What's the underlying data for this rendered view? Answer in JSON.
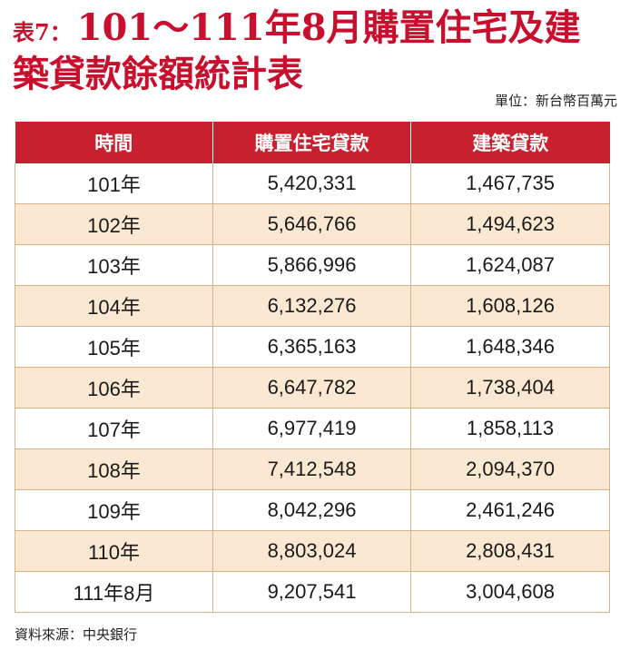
{
  "title": {
    "prefix": "表7：",
    "line1": "101～111年8月購置住宅及建",
    "line2": "築貸款餘額統計表",
    "color": "#c8102e"
  },
  "unit": "單位：新台幣百萬元",
  "table": {
    "header_color": "#c8202f",
    "stripe_color": "#fbe8d2",
    "headers": [
      "時間",
      "購置住宅貸款",
      "建築貸款"
    ],
    "rows": [
      [
        "101年",
        "5,420,331",
        "1,467,735"
      ],
      [
        "102年",
        "5,646,766",
        "1,494,623"
      ],
      [
        "103年",
        "5,866,996",
        "1,624,087"
      ],
      [
        "104年",
        "6,132,276",
        "1,608,126"
      ],
      [
        "105年",
        "6,365,163",
        "1,648,346"
      ],
      [
        "106年",
        "6,647,782",
        "1,738,404"
      ],
      [
        "107年",
        "6,977,419",
        "1,858,113"
      ],
      [
        "108年",
        "7,412,548",
        "2,094,370"
      ],
      [
        "109年",
        "8,042,296",
        "2,461,246"
      ],
      [
        "110年",
        "8,803,024",
        "2,808,431"
      ],
      [
        "111年8月",
        "9,207,541",
        "3,004,608"
      ]
    ]
  },
  "source": "資料來源：中央銀行"
}
